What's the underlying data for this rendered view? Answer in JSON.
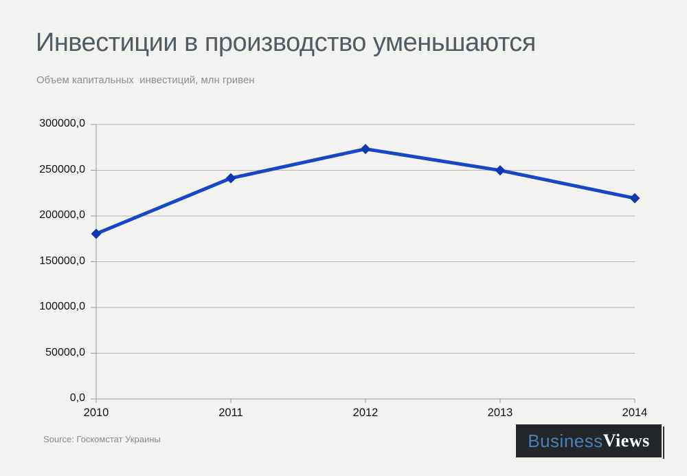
{
  "header": {
    "title": "Инвестиции в производство уменьшаются",
    "subtitle": "Объем капитальных  инвестиций, млн гривен"
  },
  "chart_data": {
    "type": "line",
    "categories": [
      "2010",
      "2011",
      "2012",
      "2013",
      "2014"
    ],
    "series": [
      {
        "name": "Объем капитальных инвестиций, млн гривен",
        "values": [
          180575.5,
          241286.0,
          273256.0,
          249873.4,
          219419.9
        ]
      }
    ],
    "title": "Инвестиции в производство уменьшаются",
    "xlabel": "",
    "ylabel": "",
    "ylim": [
      0,
      300000
    ],
    "ytick_step": 50000,
    "ytick_labels": [
      "0,0",
      "50000,0",
      "100000,0",
      "150000,0",
      "200000,0",
      "250000,0",
      "300000,0"
    ],
    "grid": true,
    "legend": "none",
    "marker": "diamond",
    "line_color": "#1747c5",
    "marker_color": "#1238b0",
    "gridline_color": "#b3b3b3",
    "axis_color": "#999999"
  },
  "footer": {
    "source": "Source: Госкомстат Украины",
    "logo": {
      "part1": "Business",
      "part2": "Views",
      "part1_color": "#4a80b5",
      "part2_color": "#ffffff",
      "background": "#222629"
    }
  },
  "colors": {
    "page_background": "#f2f2f1",
    "title_text": "#515b64",
    "subtitle_text": "#8f8f8f",
    "axis_label_text": "#111111",
    "source_text": "#8a8a8a"
  }
}
